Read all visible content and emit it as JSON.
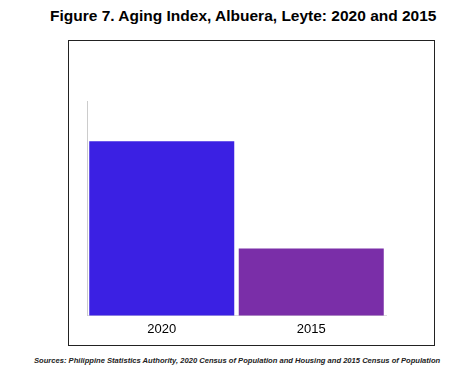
{
  "chart_data": {
    "type": "bar",
    "title": "Figure 7. Aging Index, Albuera, Leyte: 2020 and 2015",
    "source": "Sources: Philippine Statistics Authority, 2020 Census of Population and Housing and 2015 Census of Population",
    "categories": [
      "2020",
      "2015"
    ],
    "values": [
      31.5,
      27.5
    ],
    "colors": [
      "#3b20e3",
      "#7a2ea8"
    ],
    "ylim": [
      25,
      33
    ],
    "grid": false,
    "tick_labels": "x",
    "data_labels": true
  }
}
